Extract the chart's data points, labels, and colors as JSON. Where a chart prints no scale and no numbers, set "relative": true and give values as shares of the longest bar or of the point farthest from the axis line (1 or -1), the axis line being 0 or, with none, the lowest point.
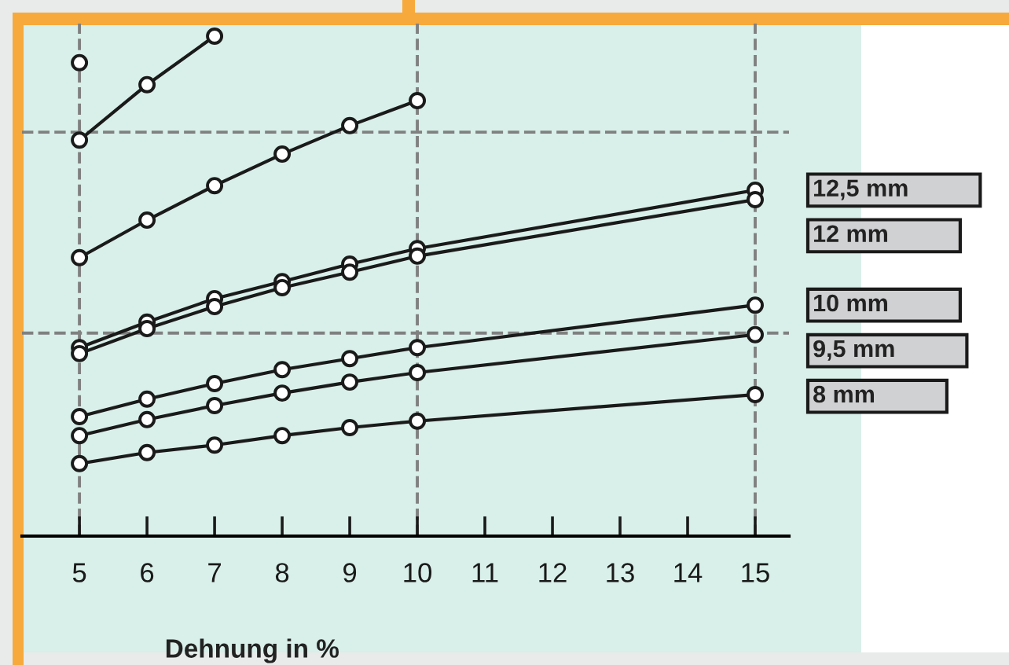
{
  "chart_data": {
    "type": "line",
    "xlabel": "Dehnung in %",
    "relative": true,
    "x": [
      5,
      6,
      7,
      8,
      9,
      10,
      15
    ],
    "xlim": [
      4.15,
      15.5
    ],
    "xticks": [
      5,
      6,
      7,
      8,
      9,
      10,
      11,
      12,
      13,
      14,
      15
    ],
    "marker": "circle",
    "legend": "right",
    "line_style": "solid",
    "grid": false,
    "tick_labels": "x",
    "ref_lines": [
      {
        "axis": "x",
        "value": 5,
        "color": "#808080",
        "line_style": "dashed"
      },
      {
        "axis": "x",
        "value": 10,
        "color": "#808080",
        "line_style": "dashed"
      },
      {
        "axis": "x",
        "value": 15,
        "color": "#808080",
        "line_style": "dashed"
      },
      {
        "axis": "y",
        "value": 0.808,
        "color": "#808080",
        "line_style": "dashed"
      },
      {
        "axis": "y",
        "value": 0.406,
        "color": "#808080",
        "line_style": "dashed"
      }
    ],
    "series": [
      {
        "color": "#1a1a1a",
        "values": [
          0.947,
          null,
          null,
          null,
          null,
          null,
          null
        ]
      },
      {
        "color": "#1a1a1a",
        "values": [
          0.792,
          0.903,
          1.0,
          null,
          null,
          null,
          null
        ]
      },
      {
        "color": "#1a1a1a",
        "values": [
          0.557,
          0.632,
          0.701,
          0.764,
          0.821,
          0.871,
          null
        ]
      },
      {
        "name": "12,5 mm",
        "color": "#1a1a1a",
        "values": [
          0.377,
          0.428,
          0.475,
          0.509,
          0.544,
          0.575,
          0.692
        ]
      },
      {
        "name": "12 mm",
        "color": "#1a1a1a",
        "values": [
          0.365,
          0.415,
          0.459,
          0.497,
          0.528,
          0.56,
          0.673
        ]
      },
      {
        "name": "10 mm",
        "color": "#1a1a1a",
        "values": [
          0.239,
          0.274,
          0.305,
          0.333,
          0.355,
          0.377,
          0.462
        ]
      },
      {
        "name": "9,5 mm",
        "color": "#1a1a1a",
        "values": [
          0.201,
          0.233,
          0.261,
          0.286,
          0.308,
          0.327,
          0.403
        ]
      },
      {
        "name": "8 mm",
        "color": "#1a1a1a",
        "values": [
          0.145,
          0.167,
          0.182,
          0.201,
          0.217,
          0.23,
          0.283
        ]
      }
    ]
  }
}
